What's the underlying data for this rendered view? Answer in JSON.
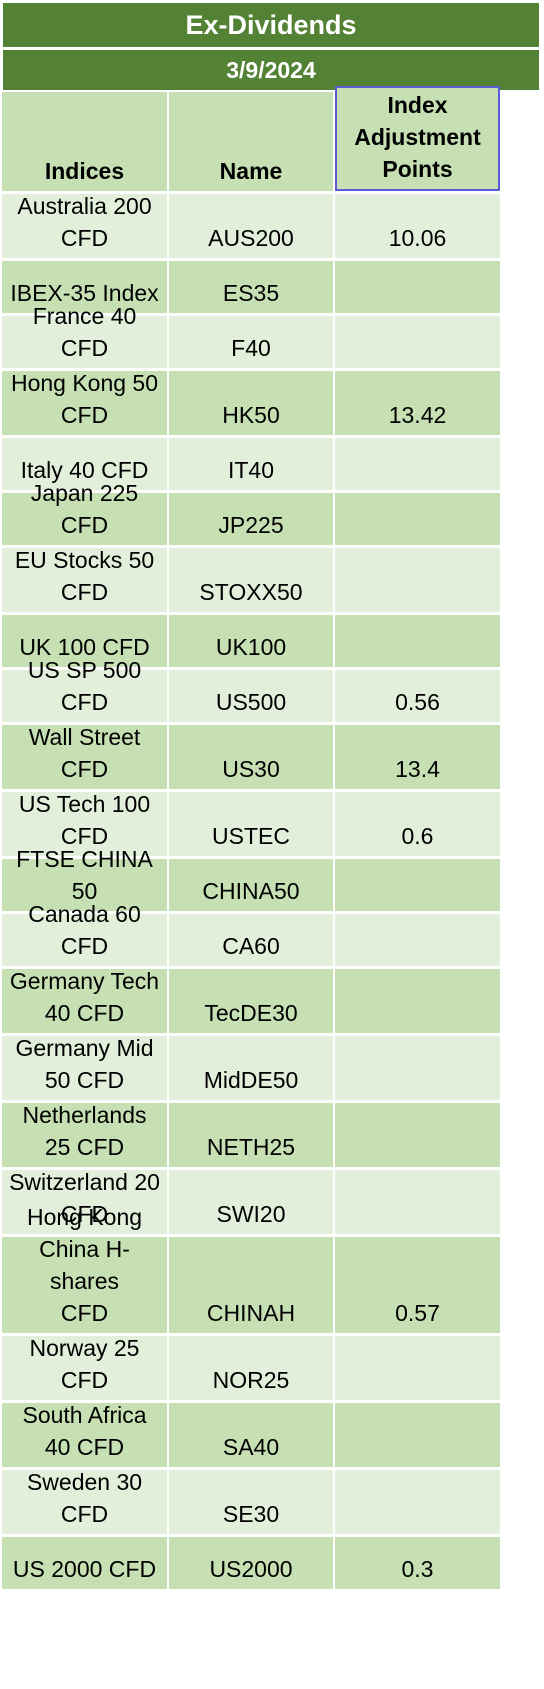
{
  "title": "Ex-Dividends",
  "date": "3/9/2024",
  "columns": {
    "indices": "Indices",
    "name": "Name",
    "points_lines": [
      "Index",
      "Adjustment",
      "Points"
    ]
  },
  "rows": [
    {
      "index_lines": [
        "Australia 200",
        "CFD"
      ],
      "name": "AUS200",
      "points": "10.06"
    },
    {
      "index_lines": [
        "IBEX-35 Index"
      ],
      "name": "ES35",
      "points": ""
    },
    {
      "index_lines": [
        "France 40 CFD"
      ],
      "name": "F40",
      "points": ""
    },
    {
      "index_lines": [
        "Hong Kong 50",
        "CFD"
      ],
      "name": "HK50",
      "points": "13.42"
    },
    {
      "index_lines": [
        "Italy 40 CFD"
      ],
      "name": "IT40",
      "points": ""
    },
    {
      "index_lines": [
        "Japan 225 CFD"
      ],
      "name": "JP225",
      "points": ""
    },
    {
      "index_lines": [
        "EU Stocks 50",
        "CFD"
      ],
      "name": "STOXX50",
      "points": ""
    },
    {
      "index_lines": [
        "UK 100 CFD"
      ],
      "name": "UK100",
      "points": ""
    },
    {
      "index_lines": [
        "US SP 500 CFD"
      ],
      "name": "US500",
      "points": "0.56"
    },
    {
      "index_lines": [
        "Wall Street",
        "CFD"
      ],
      "name": "US30",
      "points": "13.4"
    },
    {
      "index_lines": [
        "US Tech 100",
        "CFD"
      ],
      "name": "USTEC",
      "points": "0.6"
    },
    {
      "index_lines": [
        "FTSE CHINA 50"
      ],
      "name": "CHINA50",
      "points": ""
    },
    {
      "index_lines": [
        "Canada 60 CFD"
      ],
      "name": "CA60",
      "points": ""
    },
    {
      "index_lines": [
        "Germany Tech",
        "40 CFD"
      ],
      "name": "TecDE30",
      "points": ""
    },
    {
      "index_lines": [
        "Germany Mid",
        "50 CFD"
      ],
      "name": "MidDE50",
      "points": ""
    },
    {
      "index_lines": [
        "Netherlands",
        "25 CFD"
      ],
      "name": "NETH25",
      "points": ""
    },
    {
      "index_lines": [
        "Switzerland 20",
        "CFD"
      ],
      "name": "SWI20",
      "points": ""
    },
    {
      "index_lines": [
        "Hong Kong",
        "China H-shares",
        "CFD"
      ],
      "name": "CHINAH",
      "points": "0.57"
    },
    {
      "index_lines": [
        "Norway 25",
        "CFD"
      ],
      "name": "NOR25",
      "points": ""
    },
    {
      "index_lines": [
        "South Africa",
        "40 CFD"
      ],
      "name": "SA40",
      "points": ""
    },
    {
      "index_lines": [
        "Sweden 30",
        "CFD"
      ],
      "name": "SE30",
      "points": ""
    },
    {
      "index_lines": [
        "US 2000 CFD"
      ],
      "name": "US2000",
      "points": "0.3"
    }
  ],
  "colors": {
    "banner": "#548235",
    "light_row": "#e2efda",
    "dark_row": "#c6e0b4",
    "selection": "#5b5bd6"
  }
}
